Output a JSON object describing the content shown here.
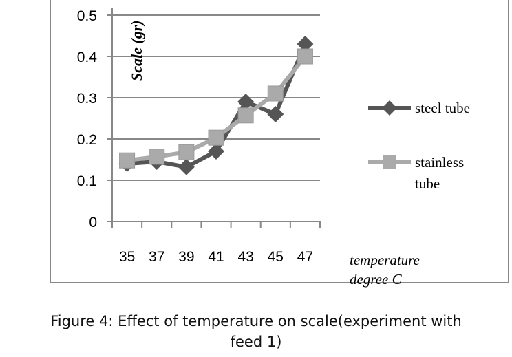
{
  "chart_data": {
    "type": "line",
    "title": "",
    "xlabel": "temperature degree C",
    "ylabel": "Scale (gr)",
    "categories": [
      "35",
      "37",
      "39",
      "41",
      "43",
      "45",
      "47"
    ],
    "ylim": [
      0,
      0.5
    ],
    "yticks": [
      "0",
      "0.1",
      "0.2",
      "0.3",
      "0.4",
      "0.5"
    ],
    "grid": true,
    "legend": "right",
    "series": [
      {
        "name": "steel tube",
        "marker": "diamond",
        "color": "#555555",
        "values": [
          0.14,
          0.145,
          0.132,
          0.17,
          0.29,
          0.26,
          0.43
        ]
      },
      {
        "name": "stainless tube",
        "marker": "square",
        "color": "#aaaaaa",
        "values": [
          0.148,
          0.157,
          0.168,
          0.203,
          0.257,
          0.31,
          0.4
        ]
      }
    ]
  },
  "caption": {
    "line1": "Figure 4: Effect of temperature on scale(experiment with",
    "line2": "feed 1)"
  },
  "xlabel_lines": [
    "temperature",
    "degree C"
  ],
  "legend_lines": [
    [
      "steel tube"
    ],
    [
      "stainless",
      "tube"
    ]
  ]
}
